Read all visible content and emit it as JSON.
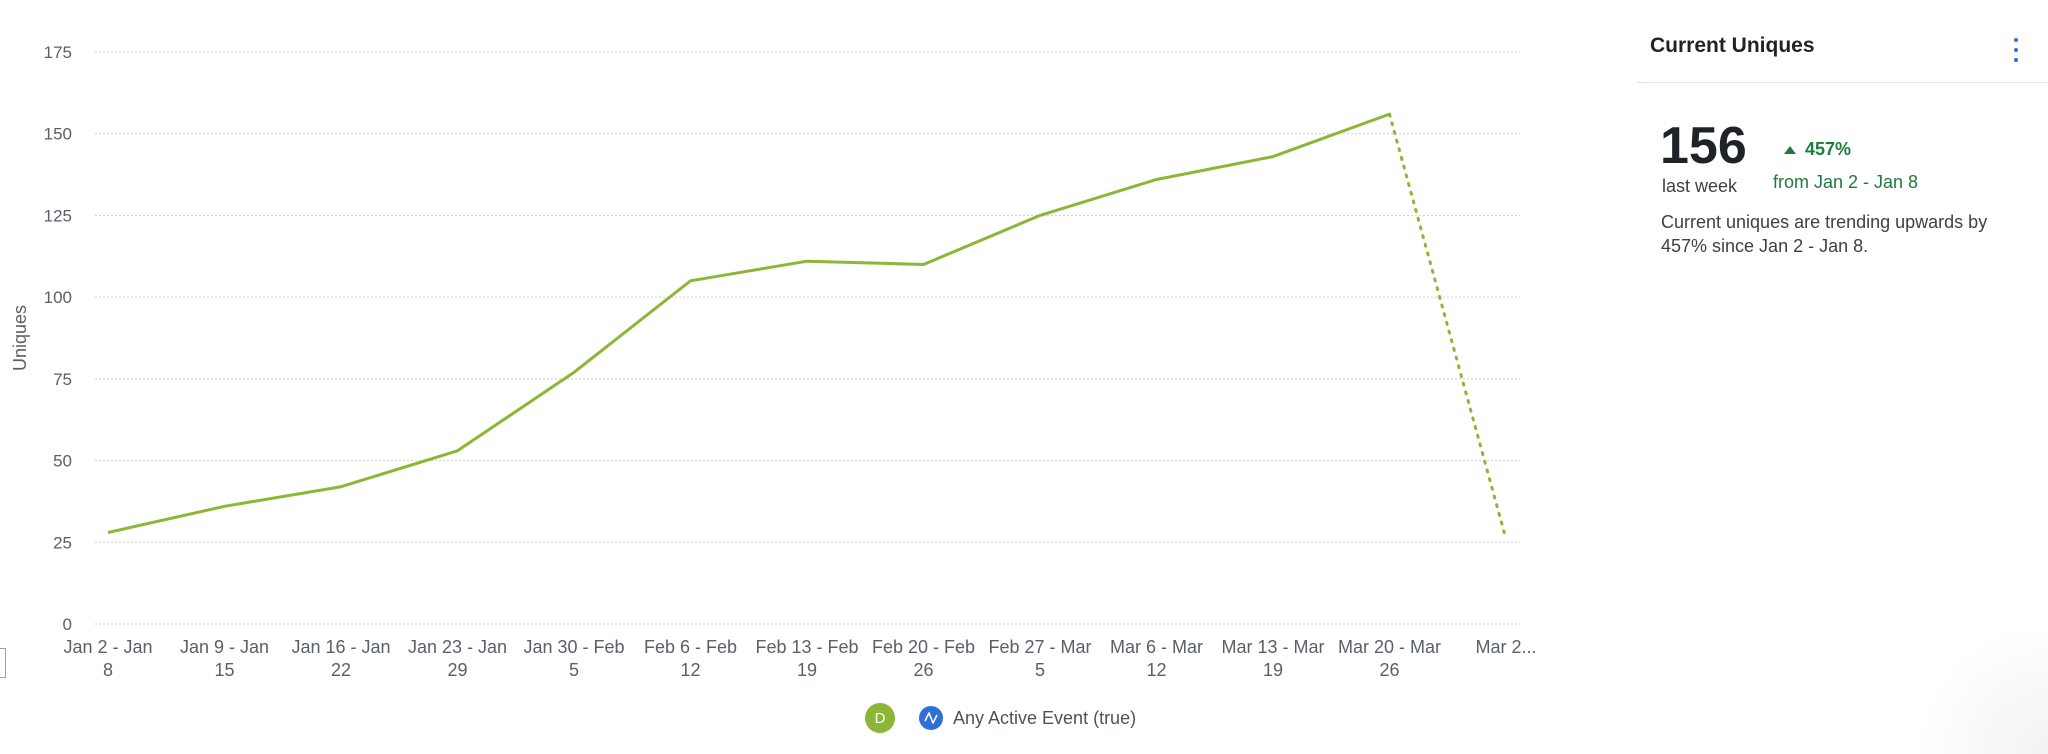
{
  "chart_data": {
    "type": "line",
    "ylabel": "Uniques",
    "ylim": [
      0,
      175
    ],
    "yticks": [
      0,
      25,
      50,
      75,
      100,
      125,
      150,
      175
    ],
    "grid": true,
    "categories": [
      [
        "Jan 2 - Jan",
        "8"
      ],
      [
        "Jan 9 - Jan",
        "15"
      ],
      [
        "Jan 16 - Jan",
        "22"
      ],
      [
        "Jan 23 - Jan",
        "29"
      ],
      [
        "Jan 30 - Feb",
        "5"
      ],
      [
        "Feb 6 - Feb",
        "12"
      ],
      [
        "Feb 13 - Feb",
        "19"
      ],
      [
        "Feb 20 - Feb",
        "26"
      ],
      [
        "Feb 27 - Mar",
        "5"
      ],
      [
        "Mar 6 - Mar",
        "12"
      ],
      [
        "Mar 13 - Mar",
        "19"
      ],
      [
        "Mar 20 - Mar",
        "26"
      ],
      [
        "Mar 2...",
        ""
      ]
    ],
    "series": [
      {
        "name": "Any Active Event (true)",
        "color": "#8bb636",
        "values": [
          28,
          36,
          42,
          53,
          77,
          105,
          111,
          110,
          125,
          136,
          143,
          156,
          26
        ],
        "incomplete_from_index": 11
      }
    ],
    "legend_position": "bottom"
  },
  "legend": {
    "badge": "D",
    "event_label": "Any Active Event (true)",
    "event_icon": "event-icon"
  },
  "panel": {
    "title": "Current Uniques",
    "menu_icon": "kebab-icon",
    "value": "156",
    "period": "last week",
    "change": "457%",
    "change_direction": "up",
    "change_from": "from Jan 2 - Jan 8",
    "description": "Current uniques are trending upwards by 457% since Jan 2 - Jan 8.",
    "positive_color": "#1f7a3f"
  }
}
